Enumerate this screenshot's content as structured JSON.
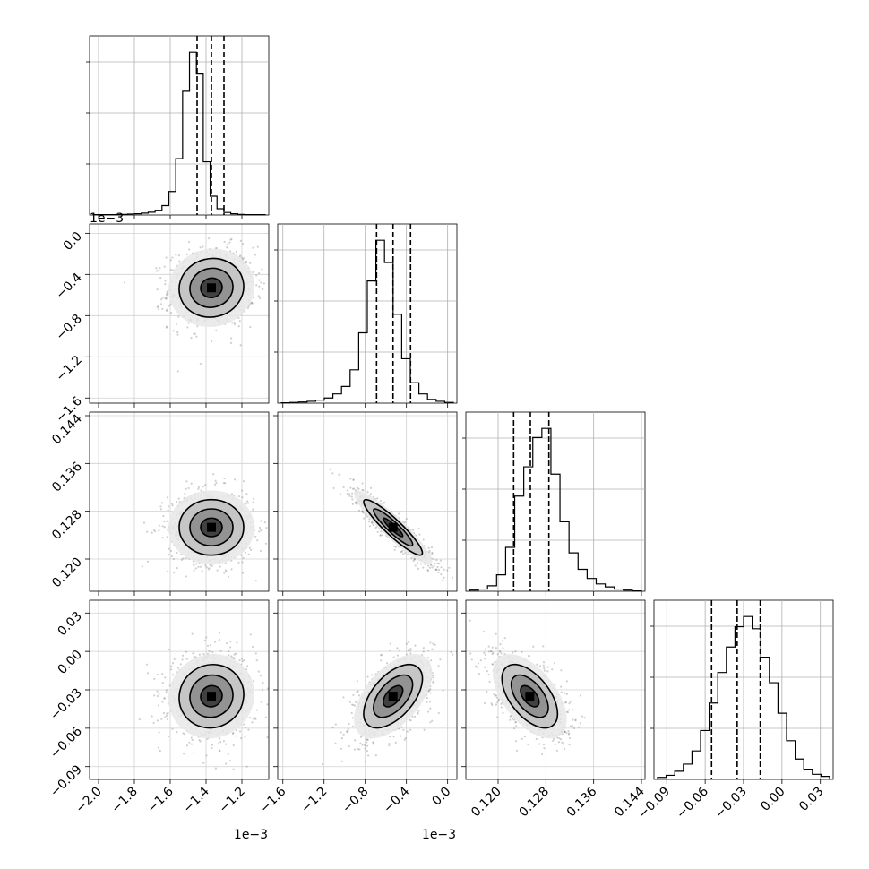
{
  "chart_data": {
    "type": "corner",
    "grid": true,
    "variables": [
      {
        "range": [
          -0.00205,
          -0.00105
        ],
        "ticks": [
          -0.002,
          -0.0018,
          -0.0016,
          -0.0014,
          -0.0012
        ],
        "tick_labels": [
          "−2.0",
          "−1.8",
          "−1.6",
          "−1.4",
          "−1.2"
        ],
        "offset_text": "1e−3",
        "quantiles": [
          -0.00145,
          -0.00137,
          -0.0013
        ],
        "hist_counts": [
          1,
          1,
          1,
          1,
          2,
          3,
          4,
          6,
          9,
          15,
          30,
          75,
          180,
          395,
          520,
          450,
          170,
          60,
          20,
          8,
          4,
          2,
          1,
          1,
          1
        ]
      },
      {
        "range": [
          -0.00165,
          9e-05
        ],
        "ticks": [
          -0.0016,
          -0.0012,
          -0.0008,
          -0.0004,
          0.0
        ],
        "tick_labels": [
          "−1.6",
          "−1.2",
          "−0.8",
          "−0.4",
          "0.0"
        ],
        "offset_text": "1e−3",
        "quantiles": [
          -0.00069,
          -0.00053,
          -0.00036
        ],
        "hist_counts": [
          1,
          2,
          3,
          5,
          8,
          14,
          25,
          45,
          90,
          190,
          330,
          440,
          380,
          240,
          120,
          55,
          25,
          10,
          5,
          2
        ]
      },
      {
        "range": [
          0.1146,
          0.1446
        ],
        "ticks": [
          0.12,
          0.128,
          0.136,
          0.144
        ],
        "tick_labels": [
          "0.120",
          "0.128",
          "0.136",
          "0.144"
        ],
        "offset_text": "",
        "quantiles": [
          0.1226,
          0.1254,
          0.1285
        ],
        "hist_counts": [
          3,
          6,
          15,
          45,
          120,
          260,
          340,
          420,
          445,
          320,
          190,
          105,
          60,
          35,
          20,
          12,
          6,
          3,
          1
        ]
      },
      {
        "range": [
          -0.1,
          0.04
        ],
        "ticks": [
          -0.09,
          -0.06,
          -0.03,
          0.0,
          0.03
        ],
        "tick_labels": [
          "−0.09",
          "−0.06",
          "−0.03",
          "0.00",
          "0.03"
        ],
        "offset_text": "",
        "quantiles": [
          -0.055,
          -0.035,
          -0.017
        ],
        "hist_counts": [
          2,
          4,
          8,
          15,
          28,
          48,
          75,
          105,
          130,
          150,
          160,
          148,
          120,
          95,
          65,
          38,
          20,
          10,
          5,
          3
        ]
      }
    ],
    "pairs": [
      {
        "row": 1,
        "col": 0,
        "center": [
          -0.00137,
          -0.00053
        ],
        "sd": [
          0.00012,
          0.00019
        ],
        "corr": 0.05
      },
      {
        "row": 2,
        "col": 0,
        "center": [
          -0.00137,
          0.1253
        ],
        "sd": [
          0.00012,
          0.0031
        ],
        "corr": 0.0
      },
      {
        "row": 2,
        "col": 1,
        "center": [
          -0.00053,
          0.1253
        ],
        "sd": [
          0.00019,
          0.0031
        ],
        "corr": -0.92
      },
      {
        "row": 3,
        "col": 0,
        "center": [
          -0.00137,
          -0.035
        ],
        "sd": [
          0.00012,
          0.0165
        ],
        "corr": 0.05
      },
      {
        "row": 3,
        "col": 1,
        "center": [
          -0.00053,
          -0.035
        ],
        "sd": [
          0.00019,
          0.0165
        ],
        "corr": 0.55
      },
      {
        "row": 3,
        "col": 2,
        "center": [
          0.1253,
          -0.035
        ],
        "sd": [
          0.0031,
          0.0165
        ],
        "corr": -0.55
      }
    ]
  }
}
